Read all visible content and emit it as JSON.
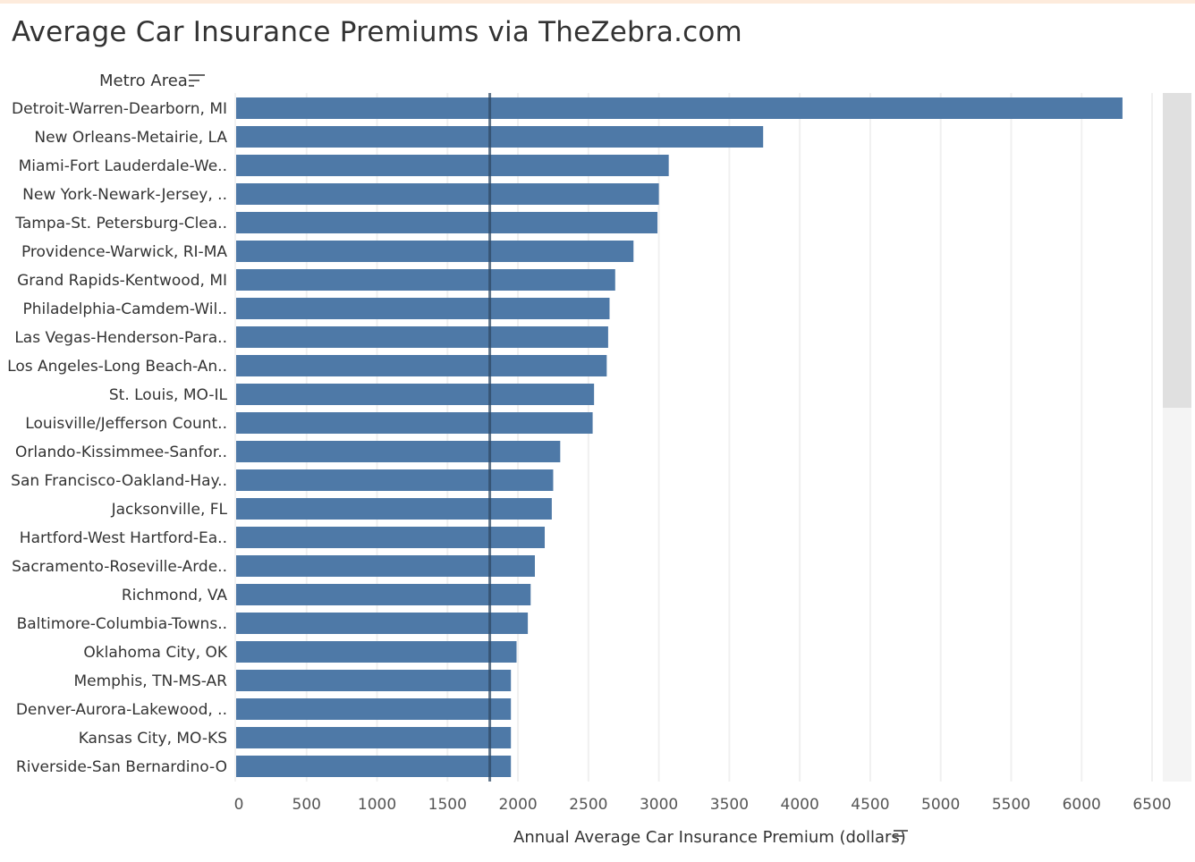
{
  "title": "Average Car Insurance Premiums via TheZebra.com",
  "row_header": "Metro Area",
  "x_axis_title": "Annual Average Car Insurance Premium (dollars)",
  "icons": {
    "row_sort": "sort-descending-icon",
    "axis_sort": "sort-descending-icon"
  },
  "colors": {
    "bar": "#4e79a7",
    "reference_line": "#2f4a66",
    "gridline": "#f0f0f0",
    "text": "#333333",
    "top_accent": "#fdebdc"
  },
  "chart_data": {
    "type": "bar",
    "orientation": "horizontal",
    "categories": [
      "Detroit-Warren-Dearborn, MI",
      "New Orleans-Metairie, LA",
      "Miami-Fort Lauderdale-We..",
      "New York-Newark-Jersey, ..",
      "Tampa-St. Petersburg-Clea..",
      "Providence-Warwick, RI-MA",
      "Grand Rapids-Kentwood, MI",
      "Philadelphia-Camdem-Wil..",
      "Las Vegas-Henderson-Para..",
      "Los Angeles-Long Beach-An..",
      "St. Louis, MO-IL",
      "Louisville/Jefferson Count..",
      "Orlando-Kissimmee-Sanfor..",
      "San Francisco-Oakland-Hay..",
      "Jacksonville, FL",
      "Hartford-West Hartford-Ea..",
      "Sacramento-Roseville-Arde..",
      "Richmond, VA",
      "Baltimore-Columbia-Towns..",
      "Oklahoma City, OK",
      "Memphis, TN-MS-AR",
      "Denver-Aurora-Lakewood, ..",
      "Kansas City, MO-KS",
      "Riverside-San Bernardino-O"
    ],
    "values": [
      6290,
      3740,
      3070,
      3000,
      2990,
      2820,
      2690,
      2650,
      2640,
      2630,
      2540,
      2530,
      2300,
      2250,
      2240,
      2190,
      2120,
      2090,
      2070,
      1990,
      1950,
      1950,
      1950,
      1950
    ],
    "xlim": [
      0,
      6500
    ],
    "x_ticks": [
      0,
      500,
      1000,
      1500,
      2000,
      2500,
      3000,
      3500,
      4000,
      4500,
      5000,
      5500,
      6000,
      6500
    ],
    "reference_line_x": 1800,
    "xlabel": "Annual Average Car Insurance Premium (dollars)",
    "ylabel": "Metro Area",
    "grid": true,
    "sorted": "descending"
  }
}
